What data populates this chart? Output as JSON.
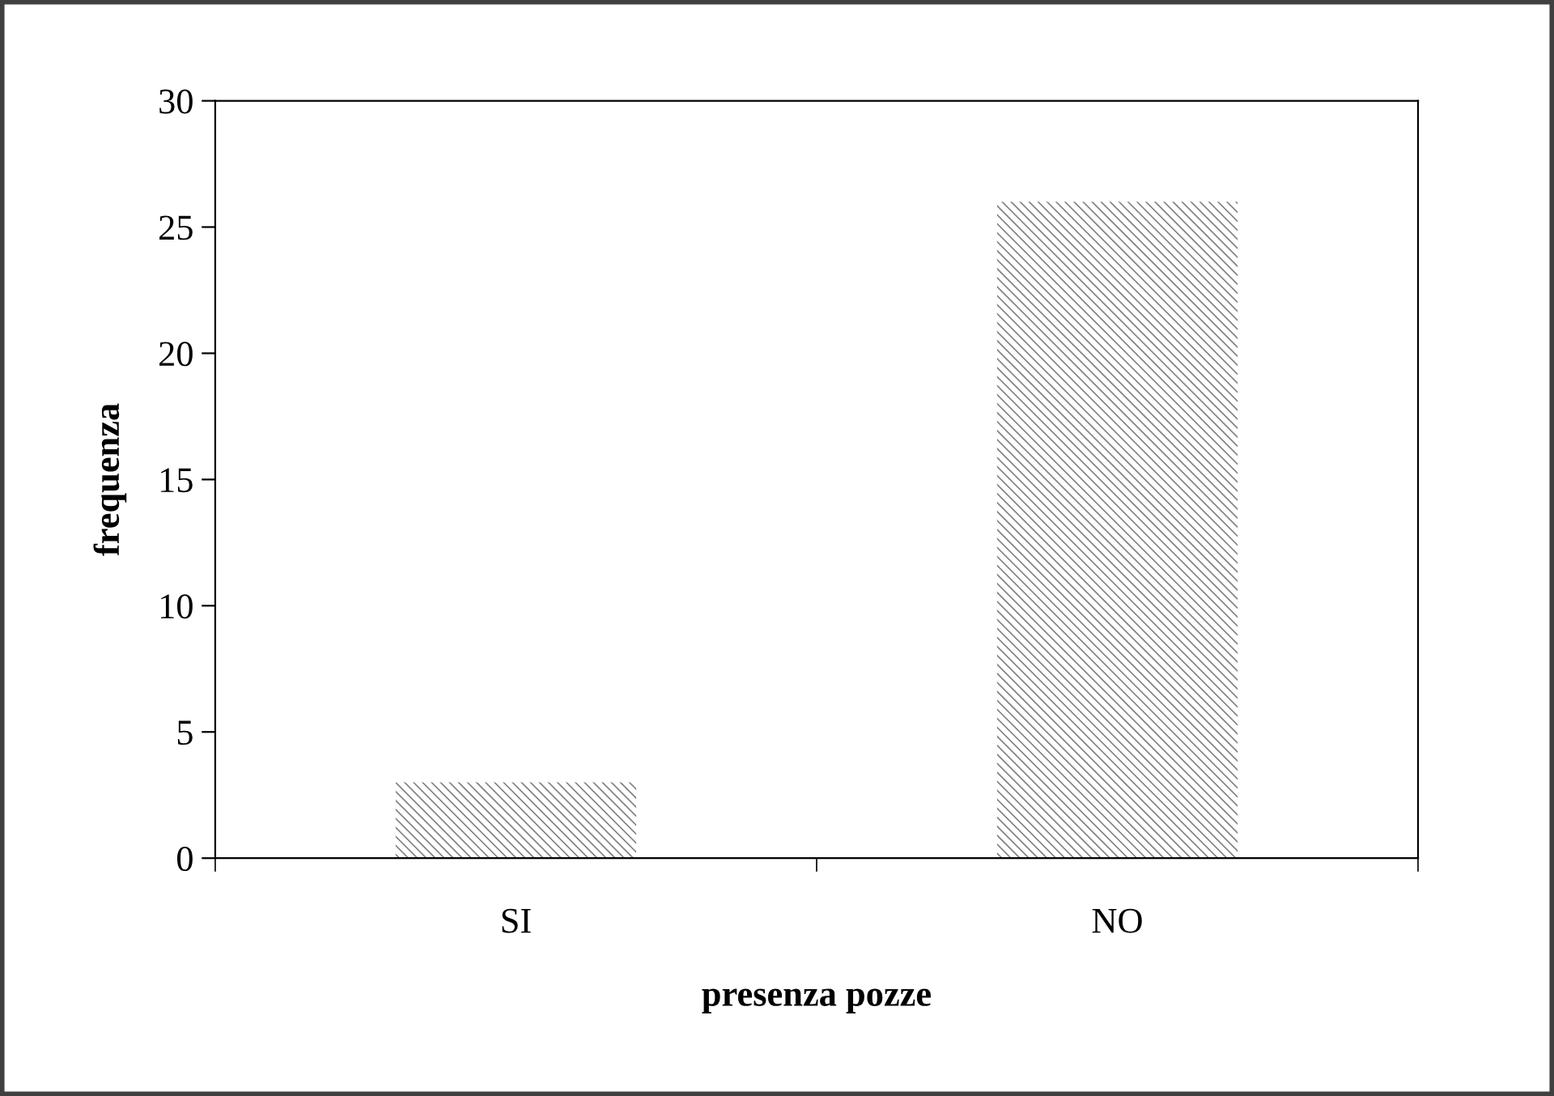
{
  "chart_data": {
    "type": "bar",
    "xlabel": "presenza pozze",
    "ylabel": "frequenza",
    "categories": [
      "SI",
      "NO"
    ],
    "series": [
      {
        "color": "#808080",
        "values": [
          3,
          26
        ]
      }
    ],
    "ylim": [
      0,
      30
    ],
    "yticks": [
      0,
      5,
      10,
      15,
      20,
      25,
      30
    ],
    "grid": false,
    "legend": false
  }
}
